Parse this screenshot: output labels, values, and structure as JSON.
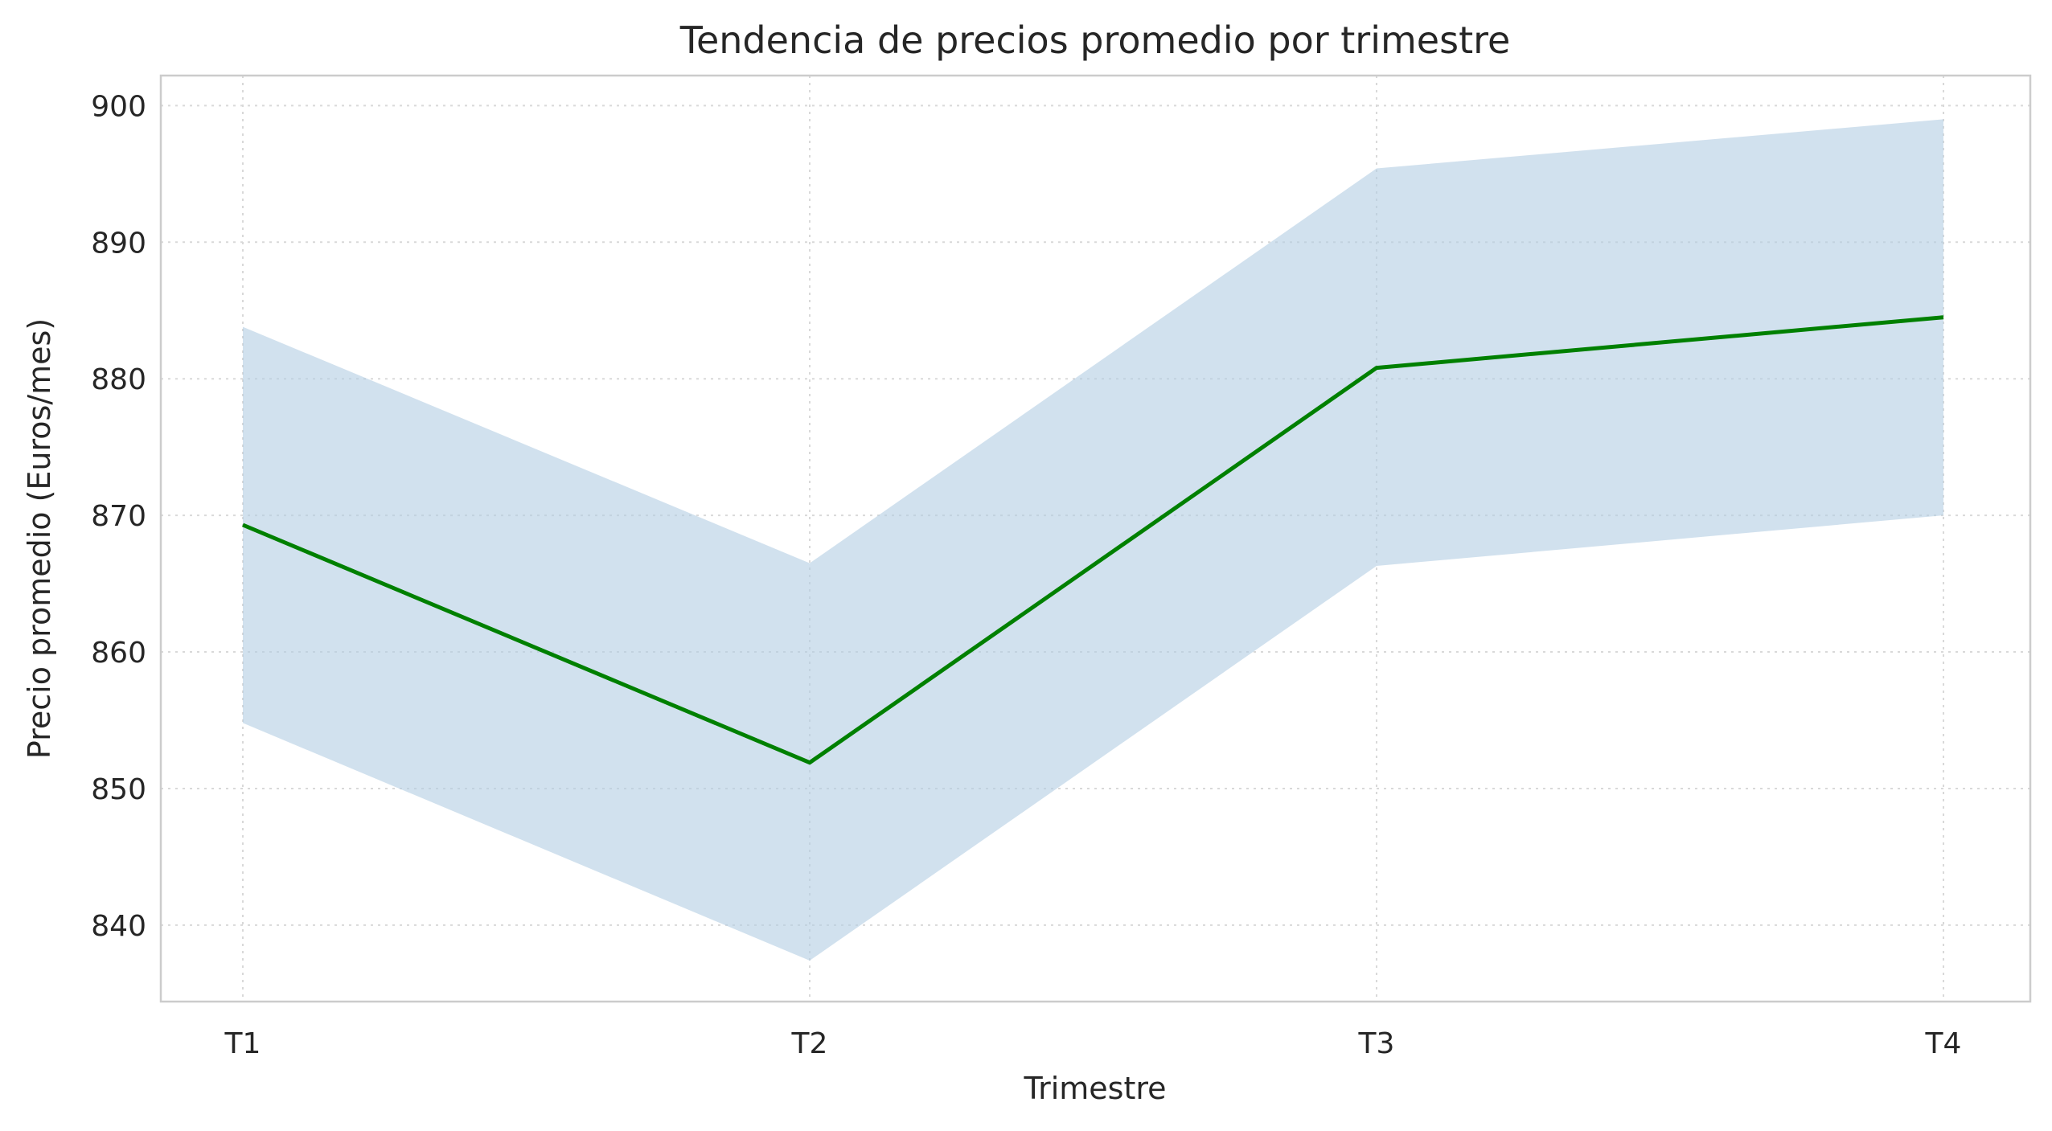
{
  "chart_data": {
    "type": "line",
    "title": "Tendencia de precios promedio por trimestre",
    "xlabel": "Trimestre",
    "ylabel": "Precio promedio (Euros/mes)",
    "categories": [
      "T1",
      "T2",
      "T3",
      "T4"
    ],
    "series": [
      {
        "values": [
          869.3,
          851.9,
          880.8,
          884.5
        ],
        "color": "#008000"
      }
    ],
    "band": {
      "lower": [
        854.8,
        837.4,
        866.3,
        870.0
      ],
      "upper": [
        883.8,
        866.5,
        895.4,
        899.0
      ],
      "color": "#b3cde3"
    },
    "ylim": [
      834.4,
      902.2
    ],
    "yticks": [
      840,
      850,
      860,
      870,
      880,
      890,
      900
    ],
    "grid": true,
    "legend": "none"
  }
}
